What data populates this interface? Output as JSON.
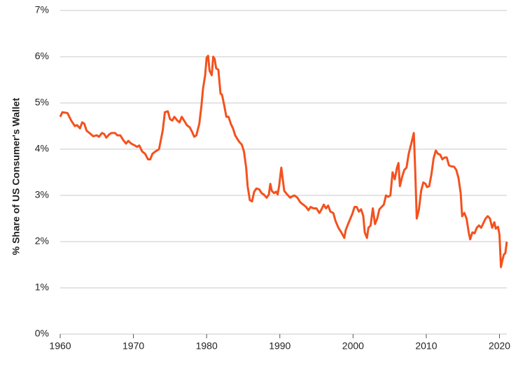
{
  "chart_data": {
    "type": "line",
    "y_label": "% Share of US Consumer's Wallet",
    "color": "#f4511e",
    "xlim": [
      1960,
      2021
    ],
    "xticks": [
      1960,
      1970,
      1980,
      1990,
      2000,
      2010,
      2020
    ],
    "ylim": [
      0,
      7
    ],
    "yticks": [
      {
        "value": 0,
        "label": "0%"
      },
      {
        "value": 1,
        "label": "1%"
      },
      {
        "value": 2,
        "label": "2%"
      },
      {
        "value": 3,
        "label": "3%"
      },
      {
        "value": 4,
        "label": "4%"
      },
      {
        "value": 5,
        "label": "5%"
      },
      {
        "value": 6,
        "label": "6%"
      },
      {
        "value": 7,
        "label": "7%"
      }
    ],
    "grid": true,
    "x": [
      1960.0,
      1960.3,
      1961,
      1961.5,
      1962,
      1962.3,
      1962.7,
      1963,
      1963.3,
      1963.6,
      1964,
      1964.5,
      1965,
      1965.3,
      1965.7,
      1966,
      1966.3,
      1966.7,
      1967,
      1967.5,
      1967.8,
      1968.2,
      1968.6,
      1969,
      1969.3,
      1969.7,
      1970.2,
      1970.5,
      1970.8,
      1971.2,
      1971.6,
      1972,
      1972.3,
      1972.6,
      1973,
      1973.5,
      1974,
      1974.3,
      1974.7,
      1975,
      1975.3,
      1975.6,
      1976,
      1976.3,
      1976.6,
      1977,
      1977.3,
      1977.7,
      1978,
      1978.3,
      1978.6,
      1979,
      1979.3,
      1979.5,
      1979.8,
      1980,
      1980.2,
      1980.4,
      1980.7,
      1980.9,
      1981.1,
      1981.3,
      1981.6,
      1981.9,
      1982.1,
      1982.4,
      1982.7,
      1983,
      1983.3,
      1983.6,
      1983.9,
      1984.2,
      1984.5,
      1984.8,
      1985.1,
      1985.4,
      1985.6,
      1985.9,
      1986.2,
      1986.5,
      1986.8,
      1987.2,
      1987.5,
      1987.8,
      1988.2,
      1988.5,
      1988.7,
      1988.9,
      1989.2,
      1989.5,
      1989.7,
      1989.9,
      1990.2,
      1990.4,
      1990.6,
      1991,
      1991.4,
      1991.7,
      1992,
      1992.4,
      1992.8,
      1993.2,
      1993.6,
      1993.9,
      1994.2,
      1994.6,
      1995,
      1995.4,
      1995.7,
      1996,
      1996.3,
      1996.6,
      1996.9,
      1997.3,
      1997.6,
      1998,
      1998.4,
      1998.8,
      1999,
      1999.5,
      1999.9,
      2000.2,
      2000.5,
      2000.8,
      2001.1,
      2001.4,
      2001.6,
      2001.9,
      2002.1,
      2002.4,
      2002.7,
      2003,
      2003.3,
      2003.6,
      2003.9,
      2004.2,
      2004.5,
      2004.8,
      2005.1,
      2005.4,
      2005.7,
      2006,
      2006.2,
      2006.4,
      2006.7,
      2007,
      2007.3,
      2007.6,
      2008,
      2008.3,
      2008.5,
      2008.7,
      2009,
      2009.3,
      2009.6,
      2009.9,
      2010.1,
      2010.4,
      2010.7,
      2011,
      2011.3,
      2011.6,
      2011.9,
      2012.2,
      2012.5,
      2012.8,
      2013.1,
      2013.4,
      2013.8,
      2014.1,
      2014.4,
      2014.7,
      2014.9,
      2015.2,
      2015.5,
      2015.8,
      2016,
      2016.3,
      2016.6,
      2016.9,
      2017.2,
      2017.5,
      2017.8,
      2018.1,
      2018.4,
      2018.7,
      2019,
      2019.3,
      2019.5,
      2019.8,
      2020,
      2020.2,
      2020.4,
      2020.6,
      2020.8,
      2021
    ],
    "values": [
      4.7,
      4.8,
      4.78,
      4.62,
      4.5,
      4.52,
      4.45,
      4.58,
      4.55,
      4.4,
      4.35,
      4.28,
      4.3,
      4.27,
      4.35,
      4.33,
      4.25,
      4.32,
      4.35,
      4.35,
      4.3,
      4.3,
      4.2,
      4.12,
      4.18,
      4.12,
      4.08,
      4.05,
      4.08,
      3.95,
      3.9,
      3.78,
      3.78,
      3.9,
      3.95,
      4.0,
      4.4,
      4.8,
      4.82,
      4.65,
      4.62,
      4.7,
      4.62,
      4.58,
      4.7,
      4.6,
      4.52,
      4.47,
      4.38,
      4.27,
      4.3,
      4.55,
      4.95,
      5.3,
      5.6,
      5.98,
      6.02,
      5.7,
      5.6,
      6.0,
      5.95,
      5.75,
      5.72,
      5.2,
      5.18,
      4.95,
      4.7,
      4.7,
      4.55,
      4.45,
      4.3,
      4.22,
      4.15,
      4.1,
      3.95,
      3.6,
      3.2,
      2.9,
      2.87,
      3.08,
      3.15,
      3.13,
      3.05,
      3.02,
      2.95,
      3.02,
      3.25,
      3.1,
      3.05,
      3.08,
      3.02,
      3.2,
      3.6,
      3.35,
      3.1,
      3.02,
      2.95,
      2.98,
      3.0,
      2.95,
      2.85,
      2.8,
      2.75,
      2.68,
      2.75,
      2.72,
      2.72,
      2.62,
      2.7,
      2.8,
      2.72,
      2.78,
      2.65,
      2.62,
      2.45,
      2.3,
      2.2,
      2.08,
      2.25,
      2.45,
      2.6,
      2.75,
      2.75,
      2.65,
      2.7,
      2.55,
      2.2,
      2.08,
      2.3,
      2.35,
      2.72,
      2.38,
      2.5,
      2.7,
      2.75,
      2.8,
      3.0,
      2.97,
      3.0,
      3.5,
      3.35,
      3.6,
      3.7,
      3.2,
      3.4,
      3.55,
      3.6,
      3.9,
      4.15,
      4.35,
      3.5,
      2.5,
      2.7,
      3.1,
      3.28,
      3.25,
      3.18,
      3.2,
      3.45,
      3.8,
      3.97,
      3.9,
      3.88,
      3.78,
      3.82,
      3.82,
      3.65,
      3.63,
      3.62,
      3.55,
      3.38,
      3.05,
      2.55,
      2.62,
      2.5,
      2.2,
      2.05,
      2.2,
      2.18,
      2.3,
      2.35,
      2.3,
      2.4,
      2.5,
      2.55,
      2.5,
      2.3,
      2.42,
      2.28,
      2.32,
      2.15,
      1.45,
      1.6,
      1.72,
      1.75,
      2.0
    ]
  }
}
